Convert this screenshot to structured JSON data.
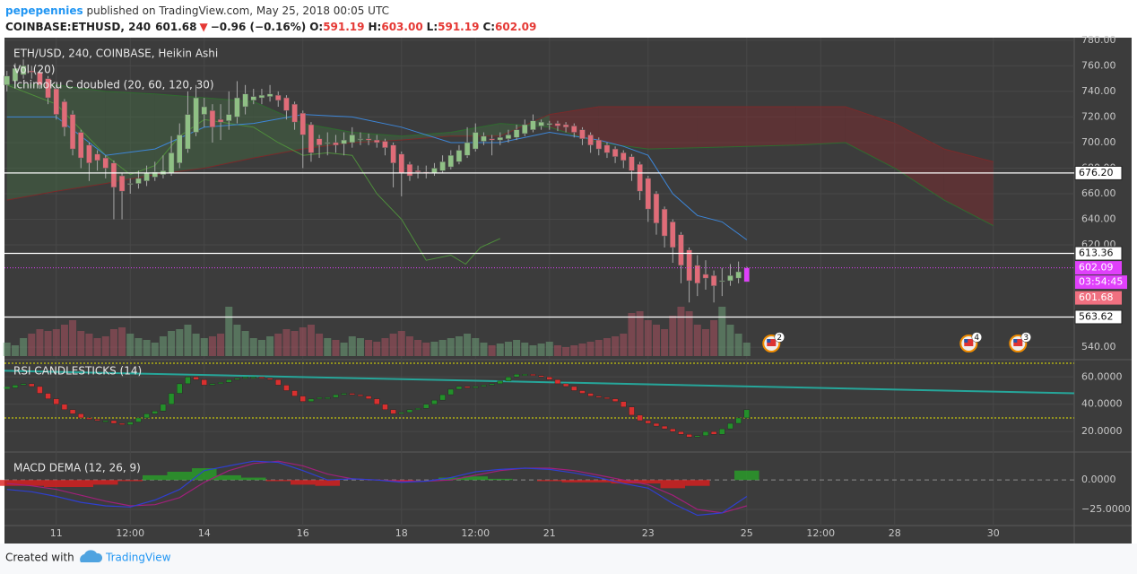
{
  "header": {
    "author": "pepepennies",
    "published": " published on TradingView.com, May 25, 2018 00:05 UTC",
    "symbol": "COINBASE:ETHUSD, 240",
    "last": "601.68",
    "arrow": "▼",
    "change": "−0.96 (−0.16%)",
    "o_label": "O:",
    "o": "591.19",
    "h_label": "H:",
    "h": "603.00",
    "l_label": "L:",
    "l": "591.19",
    "c_label": "C:",
    "c": "602.09"
  },
  "chart_data": [
    {
      "type": "candlestick",
      "title": "ETH/USD, 240, COINBASE, Heikin Ashi",
      "up_color": "#8fc085",
      "down_color": "#e06c78",
      "xlim": [
        9.95,
        31.64
      ],
      "xticks": [
        {
          "value": 11,
          "label": "11"
        },
        {
          "value": 12.5,
          "label": "12:00"
        },
        {
          "value": 14,
          "label": "14"
        },
        {
          "value": 16,
          "label": "16"
        },
        {
          "value": 18,
          "label": "18"
        },
        {
          "value": 19.5,
          "label": "12:00"
        },
        {
          "value": 21,
          "label": "21"
        },
        {
          "value": 23,
          "label": "23"
        },
        {
          "value": 25,
          "label": "25"
        },
        {
          "value": 26.5,
          "label": "12:00"
        },
        {
          "value": 28,
          "label": "28"
        },
        {
          "value": 30,
          "label": "30"
        }
      ],
      "ylim": [
        531,
        782
      ],
      "yticks": [
        {
          "value": 540,
          "label": "540.00"
        },
        {
          "value": 620,
          "label": "620.00"
        },
        {
          "value": 640,
          "label": "640.00"
        },
        {
          "value": 660,
          "label": "660.00"
        },
        {
          "value": 680,
          "label": "680.00"
        },
        {
          "value": 700,
          "label": "700.00"
        },
        {
          "value": 720,
          "label": "720.00"
        },
        {
          "value": 740,
          "label": "740.00"
        },
        {
          "value": 760,
          "label": "760.00"
        },
        {
          "value": 780,
          "label": "780.00"
        }
      ],
      "grid": true,
      "candles": [
        [
          10,
          745,
          756,
          740,
          752
        ],
        [
          10.167,
          748,
          762,
          746,
          758
        ],
        [
          10.333,
          753,
          765,
          750,
          760
        ],
        [
          10.5,
          756,
          760,
          750,
          755
        ],
        [
          10.667,
          755,
          757,
          742,
          745
        ],
        [
          10.833,
          750,
          752,
          730,
          735
        ],
        [
          11,
          742,
          745,
          718,
          722
        ],
        [
          11.167,
          732,
          734,
          705,
          712
        ],
        [
          11.333,
          722,
          725,
          690,
          695
        ],
        [
          11.5,
          708,
          710,
          680,
          688
        ],
        [
          11.667,
          698,
          700,
          670,
          684
        ],
        [
          11.833,
          691,
          694,
          678,
          686
        ],
        [
          12,
          688,
          690,
          672,
          680
        ],
        [
          12.167,
          684,
          686,
          640,
          665
        ],
        [
          12.333,
          674,
          676,
          640,
          662
        ],
        [
          12.5,
          668,
          672,
          660,
          668
        ],
        [
          12.667,
          668,
          678,
          664,
          672
        ],
        [
          12.833,
          670,
          682,
          666,
          676
        ],
        [
          13,
          673,
          685,
          670,
          677
        ],
        [
          13.167,
          675,
          690,
          672,
          678
        ],
        [
          13.333,
          676,
          705,
          674,
          692
        ],
        [
          13.5,
          684,
          715,
          680,
          706
        ],
        [
          13.667,
          695,
          740,
          692,
          722
        ],
        [
          13.833,
          708,
          745,
          705,
          735
        ],
        [
          14,
          722,
          735,
          712,
          728
        ],
        [
          14.167,
          725,
          730,
          700,
          712
        ],
        [
          14.333,
          718,
          730,
          702,
          716
        ],
        [
          14.5,
          717,
          740,
          710,
          722
        ],
        [
          14.667,
          720,
          748,
          715,
          735
        ],
        [
          14.833,
          728,
          745,
          722,
          738
        ],
        [
          15,
          733,
          742,
          730,
          736
        ],
        [
          15.167,
          735,
          742,
          730,
          737
        ],
        [
          15.333,
          736,
          745,
          732,
          738
        ],
        [
          15.5,
          737,
          740,
          728,
          733
        ],
        [
          15.667,
          735,
          737,
          718,
          725
        ],
        [
          15.833,
          730,
          732,
          710,
          716
        ],
        [
          16,
          723,
          725,
          680,
          706
        ],
        [
          16.167,
          714,
          716,
          685,
          692
        ],
        [
          16.333,
          703,
          706,
          688,
          698
        ],
        [
          16.5,
          700,
          708,
          690,
          700
        ],
        [
          16.667,
          700,
          706,
          692,
          698
        ],
        [
          16.833,
          699,
          708,
          690,
          702
        ],
        [
          17,
          700,
          712,
          696,
          706
        ],
        [
          17.167,
          703,
          708,
          698,
          703
        ],
        [
          17.333,
          703,
          707,
          698,
          702
        ],
        [
          17.5,
          702,
          706,
          696,
          700
        ],
        [
          17.667,
          701,
          703,
          690,
          696
        ],
        [
          17.833,
          698,
          700,
          665,
          684
        ],
        [
          18,
          691,
          693,
          658,
          676
        ],
        [
          18.167,
          683,
          685,
          670,
          674
        ],
        [
          18.333,
          678,
          682,
          672,
          677
        ],
        [
          18.5,
          677,
          682,
          672,
          676
        ],
        [
          18.667,
          676,
          684,
          674,
          680
        ],
        [
          18.833,
          678,
          690,
          676,
          685
        ],
        [
          19,
          681,
          694,
          679,
          690
        ],
        [
          19.167,
          685,
          698,
          683,
          694
        ],
        [
          19.333,
          690,
          712,
          688,
          700
        ],
        [
          19.5,
          695,
          715,
          693,
          708
        ],
        [
          19.667,
          701,
          708,
          698,
          705
        ],
        [
          19.833,
          703,
          706,
          690,
          702
        ],
        [
          20,
          702,
          708,
          698,
          704
        ],
        [
          20.167,
          703,
          710,
          700,
          706
        ],
        [
          20.333,
          704,
          714,
          702,
          710
        ],
        [
          20.5,
          707,
          718,
          705,
          714
        ],
        [
          20.667,
          710,
          722,
          708,
          717
        ],
        [
          20.833,
          713,
          718,
          710,
          716
        ],
        [
          21,
          714,
          717,
          710,
          715
        ],
        [
          21.167,
          715,
          717,
          709,
          713
        ],
        [
          21.333,
          714,
          716,
          708,
          712
        ],
        [
          21.5,
          713,
          715,
          704,
          708
        ],
        [
          21.667,
          710,
          712,
          698,
          703
        ],
        [
          21.833,
          706,
          708,
          692,
          698
        ],
        [
          22,
          702,
          704,
          690,
          695
        ],
        [
          22.167,
          698,
          700,
          688,
          692
        ],
        [
          22.333,
          695,
          697,
          684,
          689
        ],
        [
          22.5,
          692,
          694,
          680,
          686
        ],
        [
          22.667,
          689,
          691,
          670,
          678
        ],
        [
          22.833,
          683,
          685,
          655,
          662
        ],
        [
          23,
          672,
          674,
          638,
          648
        ],
        [
          23.167,
          660,
          662,
          628,
          637
        ],
        [
          23.333,
          648,
          650,
          618,
          627
        ],
        [
          23.5,
          638,
          640,
          606,
          618
        ],
        [
          23.667,
          628,
          630,
          590,
          604
        ],
        [
          23.833,
          616,
          618,
          575,
          592
        ],
        [
          24,
          604,
          612,
          580,
          590
        ],
        [
          24.167,
          597,
          608,
          585,
          594
        ],
        [
          24.333,
          596,
          600,
          575,
          588
        ],
        [
          24.5,
          592,
          602,
          580,
          592
        ],
        [
          24.667,
          592,
          605,
          588,
          596
        ],
        [
          24.833,
          594,
          607,
          590,
          599
        ],
        [
          25,
          591.19,
          603,
          591.19,
          602.09
        ]
      ],
      "volume": {
        "name": "Vol (20)",
        "ylim": [
          0,
          60
        ],
        "up_color": "rgba(110,160,120,0.55)",
        "down_color": "rgba(170,80,95,0.55)",
        "values": [
          15,
          12,
          20,
          25,
          30,
          28,
          30,
          35,
          40,
          28,
          25,
          20,
          22,
          30,
          32,
          25,
          20,
          18,
          15,
          22,
          28,
          30,
          35,
          25,
          20,
          22,
          25,
          55,
          35,
          28,
          20,
          18,
          22,
          25,
          30,
          28,
          32,
          35,
          25,
          20,
          18,
          15,
          22,
          20,
          18,
          16,
          20,
          25,
          28,
          22,
          18,
          15,
          16,
          18,
          20,
          22,
          25,
          20,
          15,
          12,
          14,
          16,
          18,
          15,
          12,
          14,
          16,
          12,
          10,
          12,
          14,
          16,
          18,
          20,
          22,
          25,
          48,
          50,
          40,
          35,
          30,
          45,
          55,
          50,
          35,
          30,
          40,
          55,
          35,
          25,
          15
        ]
      },
      "ichimoku": {
        "name": "Ichimoku C doubled (20, 60, 120, 30)",
        "x": [
          10,
          11,
          12,
          13,
          14,
          15,
          16,
          17,
          18,
          19,
          20,
          21,
          22,
          23,
          24,
          25,
          26,
          27,
          28,
          29,
          30
        ],
        "span_a": [
          745,
          745,
          740,
          738,
          735,
          732,
          715,
          708,
          705,
          708,
          715,
          712,
          700,
          695,
          696,
          697,
          698,
          700,
          680,
          655,
          635
        ],
        "span_b": [
          655,
          662,
          668,
          675,
          680,
          688,
          695,
          700,
          702,
          705,
          705,
          722,
          728,
          728,
          728,
          728,
          728,
          728,
          715,
          695,
          685
        ],
        "span_a_color": "#2f6b2f",
        "span_b_color": "#7a2a2a",
        "bull_fill": "rgba(70,120,70,0.35)",
        "bear_fill": "rgba(130,40,45,0.45)",
        "base_x": [
          10,
          11,
          12,
          13,
          14,
          15,
          16,
          17,
          18,
          19,
          20,
          21,
          22,
          22.5,
          23,
          23.5,
          24,
          24.5,
          25
        ],
        "base": [
          720,
          720,
          690,
          695,
          712,
          715,
          722,
          720,
          712,
          700,
          700,
          708,
          702,
          697,
          690,
          660,
          643,
          638,
          624
        ],
        "base_color": "#3d86d8",
        "lagging_x": [
          10,
          11,
          12,
          12.5,
          13,
          13.5,
          14,
          15,
          15.5,
          16,
          16.5,
          17,
          17.5,
          18,
          18.5,
          19,
          19.3,
          19.6,
          20
        ],
        "lagging": [
          745,
          730,
          690,
          675,
          682,
          705,
          718,
          712,
          700,
          690,
          692,
          690,
          660,
          640,
          608,
          612,
          605,
          618,
          625
        ],
        "lagging_color": "#4f8f3c"
      },
      "levels": [
        {
          "value": 676.2,
          "label": "676.20"
        },
        {
          "value": 613.36,
          "label": "613.36"
        },
        {
          "value": 563.62,
          "label": "563.62"
        }
      ],
      "price_line": {
        "value": 602.09,
        "label": "602.09",
        "color": "#e040fb"
      },
      "countdown": "03:54:45",
      "last_price": {
        "value": 601.68,
        "label": "601.68",
        "color": "#f07080"
      },
      "events": [
        {
          "x": 25.5,
          "count": 2
        },
        {
          "x": 29.5,
          "count": 4
        },
        {
          "x": 30.5,
          "count": 3
        }
      ]
    },
    {
      "type": "rsi",
      "title": "RSI CANDLESTICKS (14)",
      "ylim": [
        5,
        72
      ],
      "yticks": [
        {
          "value": 20,
          "label": "20.0000"
        },
        {
          "value": 40,
          "label": "40.0000"
        },
        {
          "value": 60,
          "label": "60.0000"
        }
      ],
      "levels": [
        70,
        30
      ],
      "level_color": "#e6e600",
      "up_color": "#23902a",
      "down_color": "#d9302f",
      "values": [
        52,
        54,
        55,
        53,
        48,
        44,
        40,
        36,
        33,
        30,
        29,
        28,
        28,
        26,
        25,
        27,
        30,
        33,
        35,
        40,
        48,
        55,
        60,
        58,
        54,
        55,
        56,
        58,
        59,
        60,
        60,
        59,
        58,
        54,
        50,
        46,
        42,
        44,
        45,
        45,
        47,
        48,
        47,
        46,
        44,
        40,
        36,
        33,
        34,
        36,
        37,
        40,
        43,
        47,
        51,
        53,
        52,
        53,
        54,
        55,
        57,
        60,
        62,
        62,
        61,
        60,
        58,
        55,
        53,
        50,
        48,
        46,
        45,
        44,
        42,
        38,
        32,
        28,
        26,
        24,
        22,
        20,
        18,
        16,
        17,
        20,
        18,
        22,
        26,
        30,
        36
      ],
      "trend": {
        "x": [
          9.95,
          31.64
        ],
        "values": [
          64.5,
          48
        ],
        "color": "#26a69a"
      }
    },
    {
      "type": "macd",
      "title": "MACD DEMA (12, 26, 9)",
      "ylim": [
        -38,
        23
      ],
      "yticks": [
        {
          "value": 0,
          "label": "0.0000"
        },
        {
          "value": -25,
          "label": "−25.0000"
        }
      ],
      "x": [
        10,
        10.5,
        11,
        11.5,
        12,
        12.5,
        13,
        13.5,
        14,
        14.5,
        15,
        15.5,
        16,
        16.5,
        17,
        17.5,
        18,
        18.5,
        19,
        19.5,
        20,
        20.5,
        21,
        21.5,
        22,
        22.5,
        23,
        23.5,
        24,
        24.5,
        25
      ],
      "macd": [
        -8,
        -10,
        -14,
        -19,
        -22,
        -23,
        -17,
        -8,
        8,
        12,
        16,
        15,
        8,
        0,
        1,
        0,
        -2,
        -1,
        2,
        7,
        9,
        10,
        9,
        6,
        2,
        -3,
        -7,
        -20,
        -30,
        -28,
        -14
      ],
      "signal": [
        -3,
        -5,
        -8,
        -13,
        -18,
        -22,
        -21,
        -15,
        -2,
        8,
        14,
        16,
        12,
        5,
        1,
        0,
        -1,
        -1,
        0,
        4,
        8,
        10,
        10,
        8,
        4,
        0,
        -4,
        -13,
        -25,
        -28,
        -22
      ],
      "histogram": [
        -5,
        -5,
        -6,
        -6,
        -4,
        -1,
        4,
        7,
        10,
        4,
        2,
        -1,
        -4,
        -5,
        0,
        0,
        -1,
        0,
        2,
        3,
        1,
        0,
        -1,
        -2,
        -2,
        -3,
        -3,
        -7,
        -5,
        0,
        8
      ],
      "macd_color": "#2f3fd0",
      "signal_color": "#a0207a",
      "pos_color": "rgba(40,160,40,0.8)",
      "neg_color": "rgba(220,30,30,0.8)"
    }
  ],
  "footer": {
    "created": "Created with",
    "brand": "TradingView"
  }
}
